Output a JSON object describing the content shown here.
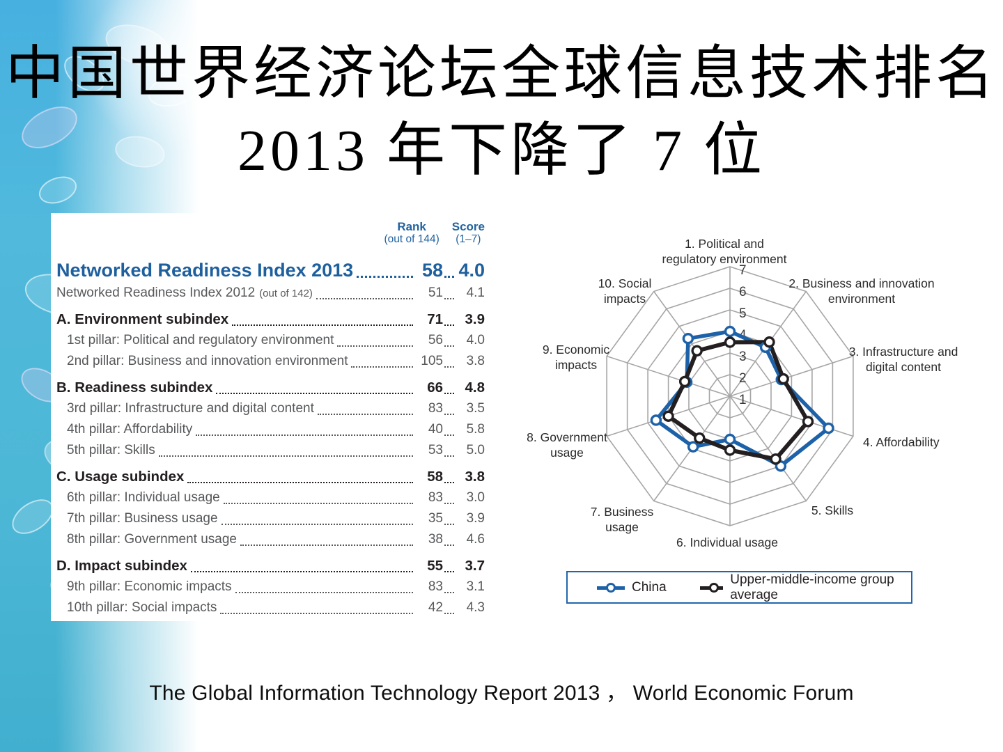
{
  "slide": {
    "title_line1": "中国世界经济论坛全球信息技术排名",
    "title_line2": "2013 年下降了 7 位",
    "footer": "The Global Information Technology Report 2013 ， World Economic Forum"
  },
  "colors": {
    "accent_blue": "#1e5f9e",
    "china_line": "#1d62a8",
    "average_line": "#231f20",
    "grid_gray": "#a6a6a6",
    "strip_blue": "#4bb4d9",
    "legend_border": "#2166ac"
  },
  "table": {
    "header": {
      "rank_label": "Rank",
      "rank_sub": "(out of 144)",
      "score_label": "Score",
      "score_sub": "(1–7)"
    },
    "title_row": {
      "label": "Networked Readiness Index 2013",
      "rank": "58",
      "score": "4.0"
    },
    "subtitle_row": {
      "label": "Networked Readiness Index 2012",
      "note": "(out of 142)",
      "rank": "51",
      "score": "4.1"
    },
    "rows": [
      {
        "type": "section",
        "label": "A. Environment subindex",
        "rank": "71",
        "score": "3.9"
      },
      {
        "type": "pillar",
        "label": "1st pillar: Political and regulatory environment",
        "rank": "56",
        "score": "4.0"
      },
      {
        "type": "pillar",
        "label": "2nd pillar: Business and innovation environment",
        "rank": "105",
        "score": "3.8"
      },
      {
        "type": "section",
        "label": "B. Readiness subindex",
        "rank": "66",
        "score": "4.8"
      },
      {
        "type": "pillar",
        "label": "3rd pillar: Infrastructure and digital content",
        "rank": "83",
        "score": "3.5"
      },
      {
        "type": "pillar",
        "label": "4th pillar: Affordability",
        "rank": "40",
        "score": "5.8"
      },
      {
        "type": "pillar",
        "label": "5th pillar: Skills",
        "rank": "53",
        "score": "5.0"
      },
      {
        "type": "section",
        "label": "C. Usage subindex",
        "rank": "58",
        "score": "3.8"
      },
      {
        "type": "pillar",
        "label": "6th pillar: Individual usage",
        "rank": "83",
        "score": "3.0"
      },
      {
        "type": "pillar",
        "label": "7th pillar: Business usage",
        "rank": "35",
        "score": "3.9"
      },
      {
        "type": "pillar",
        "label": "8th pillar: Government usage",
        "rank": "38",
        "score": "4.6"
      },
      {
        "type": "section",
        "label": "D. Impact subindex",
        "rank": "55",
        "score": "3.7"
      },
      {
        "type": "pillar",
        "label": "9th pillar: Economic impacts",
        "rank": "83",
        "score": "3.1"
      },
      {
        "type": "pillar",
        "label": "10th pillar: Social impacts",
        "rank": "42",
        "score": "4.3"
      }
    ]
  },
  "chart_data": {
    "type": "radar",
    "axes": [
      "1. Political and\nregulatory environment",
      "2. Business and innovation\nenvironment",
      "3. Infrastructure and\ndigital content",
      "4. Affordability",
      "5. Skills",
      "6. Individual usage",
      "7. Business\nusage",
      "8. Government\nusage",
      "9. Economic\nimpacts",
      "10. Social\nimpacts"
    ],
    "scale_min": 1,
    "scale_max": 7,
    "ring_values": [
      1,
      2,
      3,
      4,
      5,
      6,
      7
    ],
    "series": [
      {
        "name": "China",
        "color": "#1d62a8",
        "values": [
          4.0,
          3.8,
          3.5,
          5.8,
          5.0,
          3.0,
          3.9,
          4.6,
          3.1,
          4.3
        ]
      },
      {
        "name": "Upper-middle-income group average",
        "color": "#231f20",
        "values": [
          3.5,
          4.1,
          3.6,
          4.8,
          4.6,
          3.5,
          3.4,
          4.0,
          3.2,
          3.6
        ]
      }
    ],
    "legend_position": "bottom",
    "grid": true
  }
}
